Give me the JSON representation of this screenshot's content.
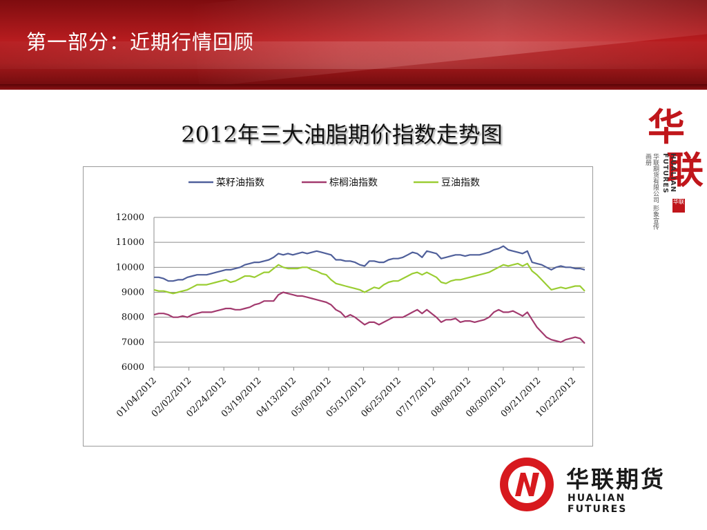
{
  "header": {
    "title": "第一部分：近期行情回顾"
  },
  "brand": {
    "vertical_char_1": "华",
    "vertical_char_2": "联",
    "vertical_en": "HUALIAN FUTURES",
    "vertical_cn": "华联期货有限公司 形象宣传画册",
    "seal_text": "华联",
    "logo_cn": "华联期货",
    "logo_en": "HUALIAN FUTURES",
    "color": "#d7191e"
  },
  "chart_data": {
    "type": "line",
    "title": "2012年三大油脂期价指数走势图",
    "ylim": [
      6000,
      12000
    ],
    "yticks": [
      6000,
      7000,
      8000,
      9000,
      10000,
      11000,
      12000
    ],
    "x_tick_labels": [
      "01/04/2012",
      "02/02/2012",
      "02/24/2012",
      "03/19/2012",
      "04/13/2012",
      "05/09/2012",
      "05/31/2012",
      "06/25/2012",
      "07/17/2012",
      "08/08/2012",
      "08/30/2012",
      "09/21/2012",
      "10/22/2012"
    ],
    "legend_position": "top",
    "grid": "horizontal",
    "series": [
      {
        "name": "菜籽油指数",
        "color": "#4f5f9a",
        "values": [
          9600,
          9600,
          9550,
          9450,
          9450,
          9500,
          9500,
          9600,
          9650,
          9700,
          9700,
          9700,
          9750,
          9800,
          9850,
          9900,
          9900,
          9950,
          10000,
          10100,
          10150,
          10200,
          10200,
          10250,
          10300,
          10400,
          10550,
          10500,
          10550,
          10500,
          10550,
          10600,
          10550,
          10600,
          10650,
          10600,
          10550,
          10500,
          10300,
          10300,
          10250,
          10250,
          10200,
          10100,
          10050,
          10250,
          10250,
          10200,
          10200,
          10300,
          10350,
          10350,
          10400,
          10500,
          10600,
          10550,
          10400,
          10650,
          10600,
          10550,
          10350,
          10400,
          10450,
          10500,
          10500,
          10450,
          10500,
          10500,
          10500,
          10550,
          10600,
          10700,
          10750,
          10850,
          10700,
          10650,
          10600,
          10550,
          10650,
          10200,
          10150,
          10100,
          10000,
          9900,
          10000,
          10050,
          10000,
          10000,
          9950,
          9950,
          9900
        ]
      },
      {
        "name": "棕榈油指数",
        "color": "#a23a6e",
        "values": [
          8100,
          8150,
          8150,
          8100,
          8000,
          8000,
          8050,
          8000,
          8100,
          8150,
          8200,
          8200,
          8200,
          8250,
          8300,
          8350,
          8350,
          8300,
          8300,
          8350,
          8400,
          8500,
          8550,
          8650,
          8650,
          8650,
          8900,
          9000,
          8950,
          8900,
          8850,
          8850,
          8800,
          8750,
          8700,
          8650,
          8600,
          8500,
          8300,
          8200,
          8000,
          8100,
          8000,
          7850,
          7700,
          7800,
          7800,
          7700,
          7800,
          7900,
          8000,
          8000,
          8000,
          8100,
          8200,
          8300,
          8150,
          8300,
          8150,
          8000,
          7800,
          7900,
          7900,
          7950,
          7800,
          7850,
          7850,
          7800,
          7850,
          7900,
          8000,
          8200,
          8300,
          8200,
          8200,
          8250,
          8150,
          8050,
          8200,
          7900,
          7600,
          7400,
          7200,
          7100,
          7050,
          7000,
          7100,
          7150,
          7200,
          7150,
          6950
        ]
      },
      {
        "name": "豆油指数",
        "color": "#9acd32",
        "values": [
          9100,
          9050,
          9050,
          9000,
          8950,
          9000,
          9050,
          9100,
          9200,
          9300,
          9300,
          9300,
          9350,
          9400,
          9450,
          9500,
          9400,
          9450,
          9550,
          9650,
          9650,
          9600,
          9700,
          9800,
          9800,
          9950,
          10100,
          10000,
          9950,
          9950,
          9950,
          10000,
          10000,
          9900,
          9850,
          9750,
          9700,
          9500,
          9350,
          9300,
          9250,
          9200,
          9150,
          9100,
          9000,
          9100,
          9200,
          9150,
          9300,
          9400,
          9450,
          9450,
          9550,
          9650,
          9750,
          9800,
          9700,
          9800,
          9700,
          9600,
          9400,
          9350,
          9450,
          9500,
          9500,
          9550,
          9600,
          9650,
          9700,
          9750,
          9800,
          9900,
          10000,
          10100,
          10050,
          10100,
          10150,
          10050,
          10150,
          9850,
          9700,
          9500,
          9300,
          9100,
          9150,
          9200,
          9150,
          9200,
          9250,
          9250,
          9050
        ]
      }
    ]
  }
}
